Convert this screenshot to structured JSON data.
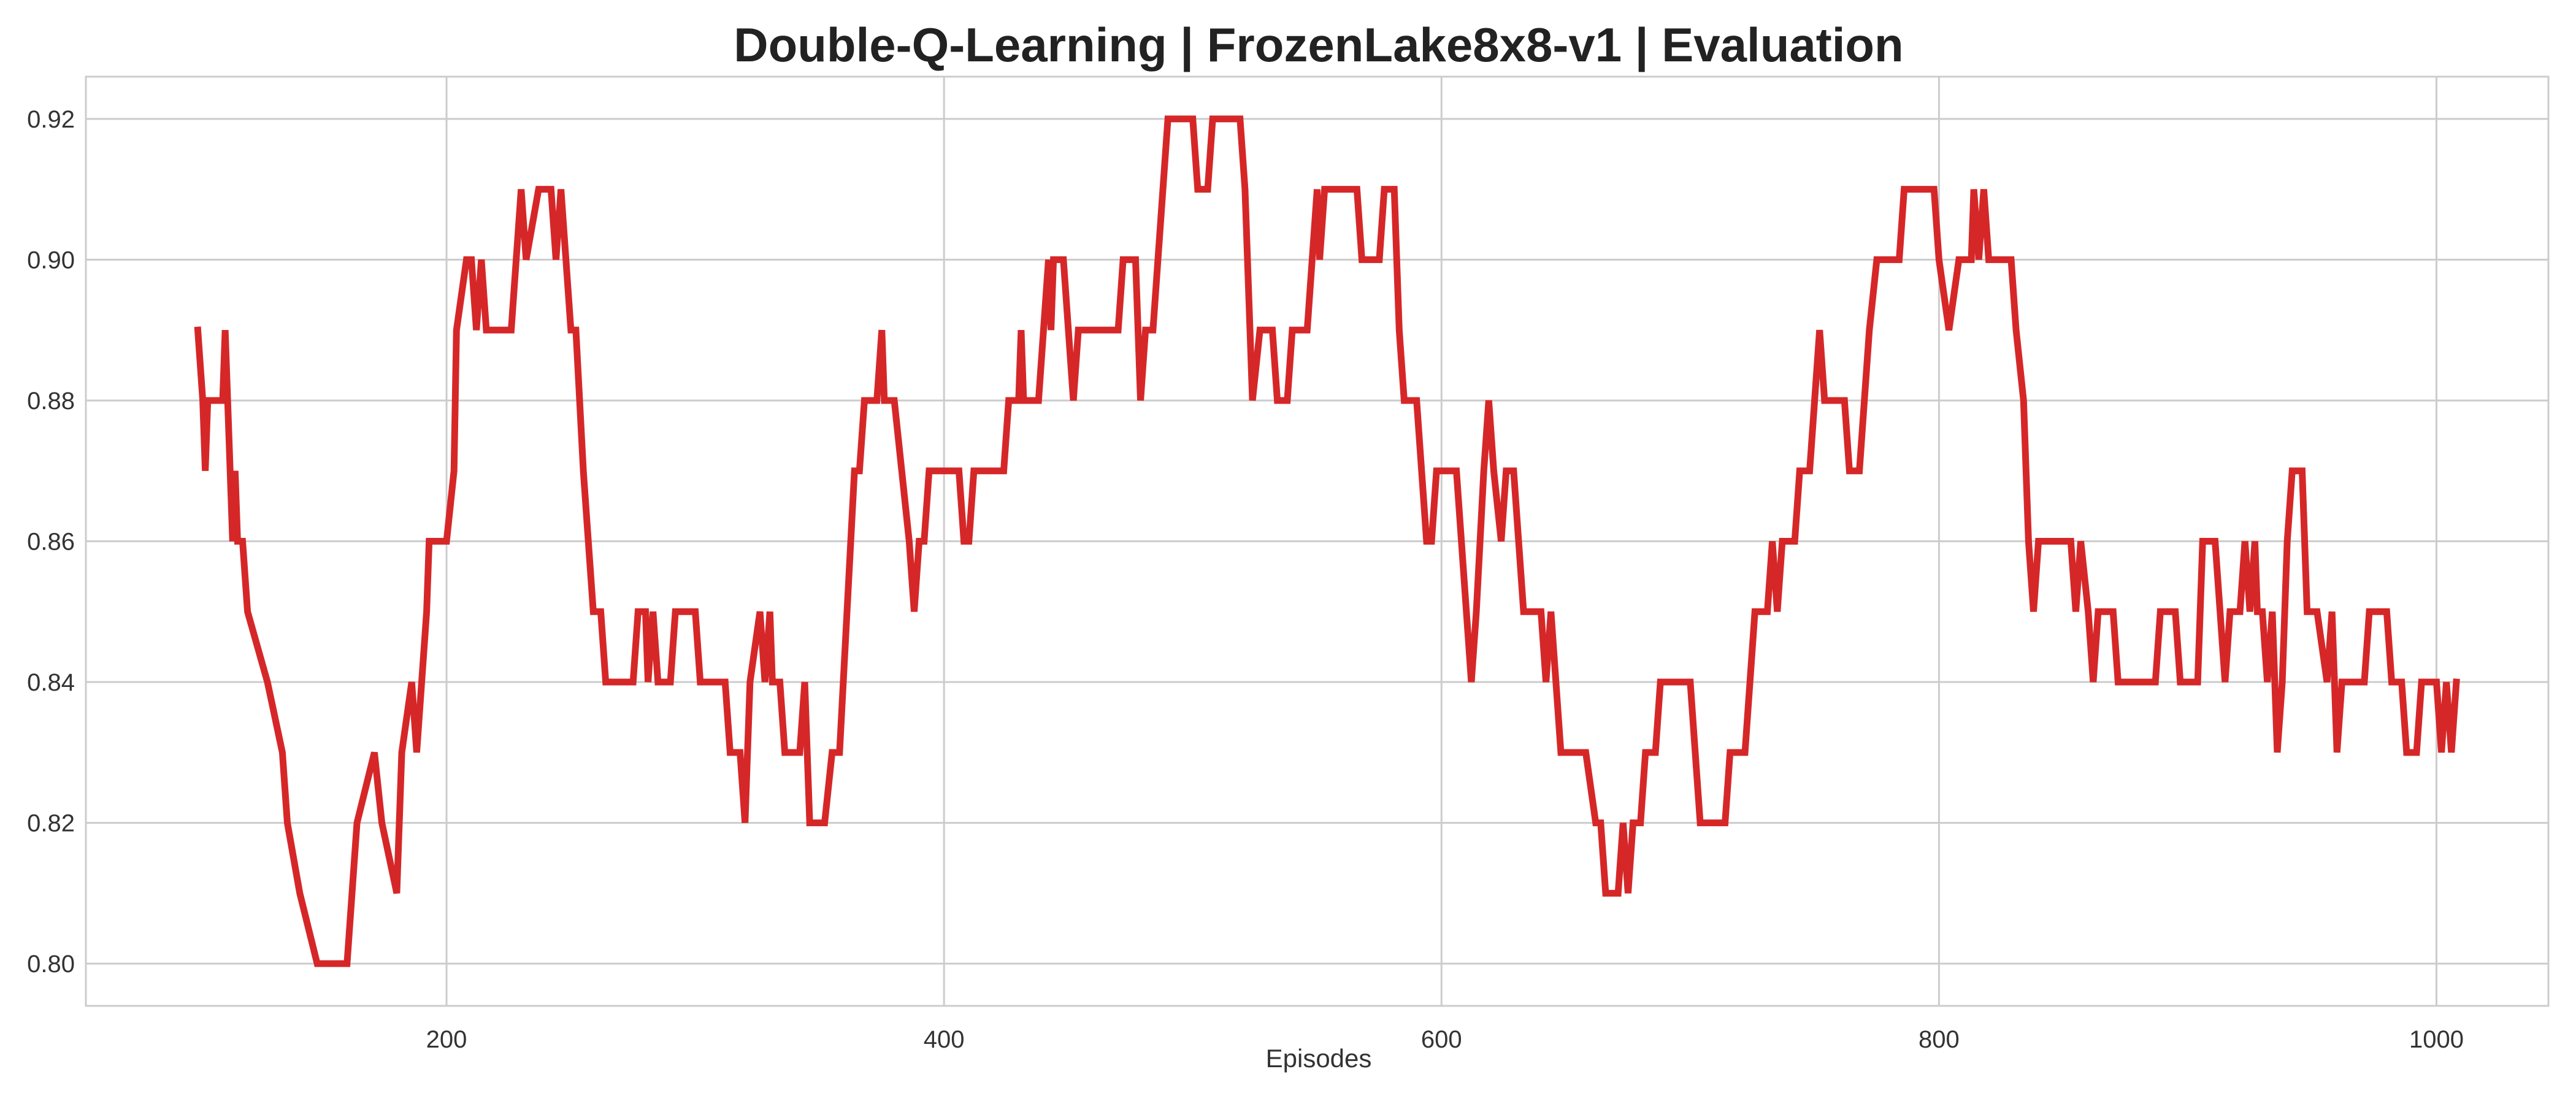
{
  "chart_data": {
    "type": "line",
    "title": "Double-Q-Learning | FrozenLake8x8-v1 | Evaluation",
    "xlabel": "Episodes",
    "ylabel": "",
    "xlim": [
      55,
      1045
    ],
    "ylim": [
      0.794,
      0.926
    ],
    "grid": true,
    "legend": "none",
    "x_ticks": [
      200,
      400,
      600,
      800,
      1000
    ],
    "y_ticks": [
      0.8,
      0.82,
      0.84,
      0.86,
      0.88,
      0.9,
      0.92
    ],
    "x_tick_labels": [
      "200",
      "400",
      "600",
      "800",
      "1000"
    ],
    "y_tick_labels": [
      "0.80",
      "0.82",
      "0.84",
      "0.86",
      "0.88",
      "0.90",
      "0.92"
    ],
    "series": [
      {
        "color": "#d62728",
        "points": [
          [
            100,
            0.89
          ],
          [
            102,
            0.88
          ],
          [
            103,
            0.87
          ],
          [
            104,
            0.88
          ],
          [
            110,
            0.88
          ],
          [
            111,
            0.89
          ],
          [
            112,
            0.88
          ],
          [
            114,
            0.86
          ],
          [
            115,
            0.87
          ],
          [
            116,
            0.86
          ],
          [
            118,
            0.86
          ],
          [
            120,
            0.85
          ],
          [
            128,
            0.84
          ],
          [
            134,
            0.83
          ],
          [
            136,
            0.82
          ],
          [
            141,
            0.81
          ],
          [
            148,
            0.8
          ],
          [
            160,
            0.8
          ],
          [
            164,
            0.82
          ],
          [
            171,
            0.83
          ],
          [
            174,
            0.82
          ],
          [
            180,
            0.81
          ],
          [
            182,
            0.83
          ],
          [
            186,
            0.84
          ],
          [
            188,
            0.83
          ],
          [
            190,
            0.84
          ],
          [
            192,
            0.85
          ],
          [
            193,
            0.86
          ],
          [
            200,
            0.86
          ],
          [
            203,
            0.87
          ],
          [
            204,
            0.89
          ],
          [
            208,
            0.9
          ],
          [
            210,
            0.9
          ],
          [
            212,
            0.89
          ],
          [
            214,
            0.9
          ],
          [
            216,
            0.89
          ],
          [
            226,
            0.89
          ],
          [
            228,
            0.9
          ],
          [
            230,
            0.91
          ],
          [
            232,
            0.9
          ],
          [
            237,
            0.91
          ],
          [
            242,
            0.91
          ],
          [
            244,
            0.9
          ],
          [
            246,
            0.91
          ],
          [
            248,
            0.9
          ],
          [
            250,
            0.89
          ],
          [
            252,
            0.89
          ],
          [
            255,
            0.87
          ],
          [
            257,
            0.86
          ],
          [
            259,
            0.85
          ],
          [
            262,
            0.85
          ],
          [
            264,
            0.84
          ],
          [
            275,
            0.84
          ],
          [
            277,
            0.85
          ],
          [
            280,
            0.85
          ],
          [
            281,
            0.84
          ],
          [
            283,
            0.85
          ],
          [
            285,
            0.84
          ],
          [
            290,
            0.84
          ],
          [
            292,
            0.85
          ],
          [
            300,
            0.85
          ],
          [
            302,
            0.84
          ],
          [
            312,
            0.84
          ],
          [
            314,
            0.83
          ],
          [
            318,
            0.83
          ],
          [
            320,
            0.82
          ],
          [
            322,
            0.84
          ],
          [
            326,
            0.85
          ],
          [
            328,
            0.84
          ],
          [
            330,
            0.85
          ],
          [
            331,
            0.84
          ],
          [
            334,
            0.84
          ],
          [
            336,
            0.83
          ],
          [
            342,
            0.83
          ],
          [
            344,
            0.84
          ],
          [
            346,
            0.82
          ],
          [
            352,
            0.82
          ],
          [
            355,
            0.83
          ],
          [
            358,
            0.83
          ],
          [
            361,
            0.85
          ],
          [
            364,
            0.87
          ],
          [
            366,
            0.87
          ],
          [
            368,
            0.88
          ],
          [
            373,
            0.88
          ],
          [
            375,
            0.89
          ],
          [
            376,
            0.88
          ],
          [
            380,
            0.88
          ],
          [
            383,
            0.87
          ],
          [
            386,
            0.86
          ],
          [
            388,
            0.85
          ],
          [
            390,
            0.86
          ],
          [
            392,
            0.86
          ],
          [
            394,
            0.87
          ],
          [
            406,
            0.87
          ],
          [
            408,
            0.86
          ],
          [
            410,
            0.86
          ],
          [
            412,
            0.87
          ],
          [
            424,
            0.87
          ],
          [
            426,
            0.88
          ],
          [
            430,
            0.88
          ],
          [
            431,
            0.89
          ],
          [
            432,
            0.88
          ],
          [
            438,
            0.88
          ],
          [
            440,
            0.89
          ],
          [
            442,
            0.9
          ],
          [
            443,
            0.89
          ],
          [
            444,
            0.9
          ],
          [
            448,
            0.9
          ],
          [
            450,
            0.89
          ],
          [
            452,
            0.88
          ],
          [
            454,
            0.89
          ],
          [
            470,
            0.89
          ],
          [
            472,
            0.9
          ],
          [
            477,
            0.9
          ],
          [
            479,
            0.88
          ],
          [
            481,
            0.89
          ],
          [
            484,
            0.89
          ],
          [
            486,
            0.9
          ],
          [
            488,
            0.91
          ],
          [
            490,
            0.92
          ],
          [
            500,
            0.92
          ],
          [
            502,
            0.91
          ],
          [
            506,
            0.91
          ],
          [
            508,
            0.92
          ],
          [
            519,
            0.92
          ],
          [
            521,
            0.91
          ],
          [
            524,
            0.88
          ],
          [
            527,
            0.89
          ],
          [
            532,
            0.89
          ],
          [
            534,
            0.88
          ],
          [
            538,
            0.88
          ],
          [
            540,
            0.89
          ],
          [
            546,
            0.89
          ],
          [
            548,
            0.9
          ],
          [
            550,
            0.91
          ],
          [
            551,
            0.9
          ],
          [
            553,
            0.91
          ],
          [
            566,
            0.91
          ],
          [
            568,
            0.9
          ],
          [
            575,
            0.9
          ],
          [
            577,
            0.91
          ],
          [
            581,
            0.91
          ],
          [
            583,
            0.89
          ],
          [
            585,
            0.88
          ],
          [
            590,
            0.88
          ],
          [
            592,
            0.87
          ],
          [
            594,
            0.86
          ],
          [
            596,
            0.86
          ],
          [
            598,
            0.87
          ],
          [
            606,
            0.87
          ],
          [
            608,
            0.86
          ],
          [
            610,
            0.85
          ],
          [
            612,
            0.84
          ],
          [
            614,
            0.85
          ],
          [
            617,
            0.87
          ],
          [
            619,
            0.88
          ],
          [
            621,
            0.87
          ],
          [
            624,
            0.86
          ],
          [
            626,
            0.87
          ],
          [
            629,
            0.87
          ],
          [
            631,
            0.86
          ],
          [
            633,
            0.85
          ],
          [
            640,
            0.85
          ],
          [
            642,
            0.84
          ],
          [
            644,
            0.85
          ],
          [
            646,
            0.84
          ],
          [
            648,
            0.83
          ],
          [
            658,
            0.83
          ],
          [
            662,
            0.82
          ],
          [
            664,
            0.82
          ],
          [
            666,
            0.81
          ],
          [
            671,
            0.81
          ],
          [
            673,
            0.82
          ],
          [
            675,
            0.81
          ],
          [
            677,
            0.82
          ],
          [
            680,
            0.82
          ],
          [
            682,
            0.83
          ],
          [
            686,
            0.83
          ],
          [
            688,
            0.84
          ],
          [
            700,
            0.84
          ],
          [
            702,
            0.83
          ],
          [
            704,
            0.82
          ],
          [
            714,
            0.82
          ],
          [
            716,
            0.83
          ],
          [
            722,
            0.83
          ],
          [
            724,
            0.84
          ],
          [
            726,
            0.85
          ],
          [
            731,
            0.85
          ],
          [
            733,
            0.86
          ],
          [
            735,
            0.85
          ],
          [
            737,
            0.86
          ],
          [
            742,
            0.86
          ],
          [
            744,
            0.87
          ],
          [
            748,
            0.87
          ],
          [
            750,
            0.88
          ],
          [
            752,
            0.89
          ],
          [
            754,
            0.88
          ],
          [
            762,
            0.88
          ],
          [
            764,
            0.87
          ],
          [
            768,
            0.87
          ],
          [
            770,
            0.88
          ],
          [
            772,
            0.89
          ],
          [
            775,
            0.9
          ],
          [
            784,
            0.9
          ],
          [
            786,
            0.91
          ],
          [
            798,
            0.91
          ],
          [
            800,
            0.9
          ],
          [
            804,
            0.89
          ],
          [
            808,
            0.9
          ],
          [
            813,
            0.9
          ],
          [
            814,
            0.91
          ],
          [
            816,
            0.9
          ],
          [
            818,
            0.91
          ],
          [
            820,
            0.9
          ],
          [
            829,
            0.9
          ],
          [
            831,
            0.89
          ],
          [
            834,
            0.88
          ],
          [
            836,
            0.86
          ],
          [
            838,
            0.85
          ],
          [
            840,
            0.86
          ],
          [
            853,
            0.86
          ],
          [
            855,
            0.85
          ],
          [
            857,
            0.86
          ],
          [
            860,
            0.85
          ],
          [
            862,
            0.84
          ],
          [
            864,
            0.85
          ],
          [
            870,
            0.85
          ],
          [
            872,
            0.84
          ],
          [
            887,
            0.84
          ],
          [
            889,
            0.85
          ],
          [
            895,
            0.85
          ],
          [
            897,
            0.84
          ],
          [
            904,
            0.84
          ],
          [
            906,
            0.86
          ],
          [
            911,
            0.86
          ],
          [
            913,
            0.85
          ],
          [
            915,
            0.84
          ],
          [
            917,
            0.85
          ],
          [
            921,
            0.85
          ],
          [
            923,
            0.86
          ],
          [
            925,
            0.85
          ],
          [
            927,
            0.86
          ],
          [
            928,
            0.85
          ],
          [
            930,
            0.85
          ],
          [
            932,
            0.84
          ],
          [
            934,
            0.85
          ],
          [
            936,
            0.83
          ],
          [
            938,
            0.84
          ],
          [
            940,
            0.86
          ],
          [
            942,
            0.87
          ],
          [
            946,
            0.87
          ],
          [
            948,
            0.85
          ],
          [
            952,
            0.85
          ],
          [
            956,
            0.84
          ],
          [
            958,
            0.85
          ],
          [
            960,
            0.83
          ],
          [
            962,
            0.84
          ],
          [
            971,
            0.84
          ],
          [
            973,
            0.85
          ],
          [
            980,
            0.85
          ],
          [
            982,
            0.84
          ],
          [
            986,
            0.84
          ],
          [
            988,
            0.83
          ],
          [
            992,
            0.83
          ],
          [
            994,
            0.84
          ],
          [
            1000,
            0.84
          ],
          [
            1002,
            0.83
          ],
          [
            1004,
            0.84
          ],
          [
            1006,
            0.83
          ],
          [
            1008,
            0.84
          ]
        ]
      }
    ]
  }
}
